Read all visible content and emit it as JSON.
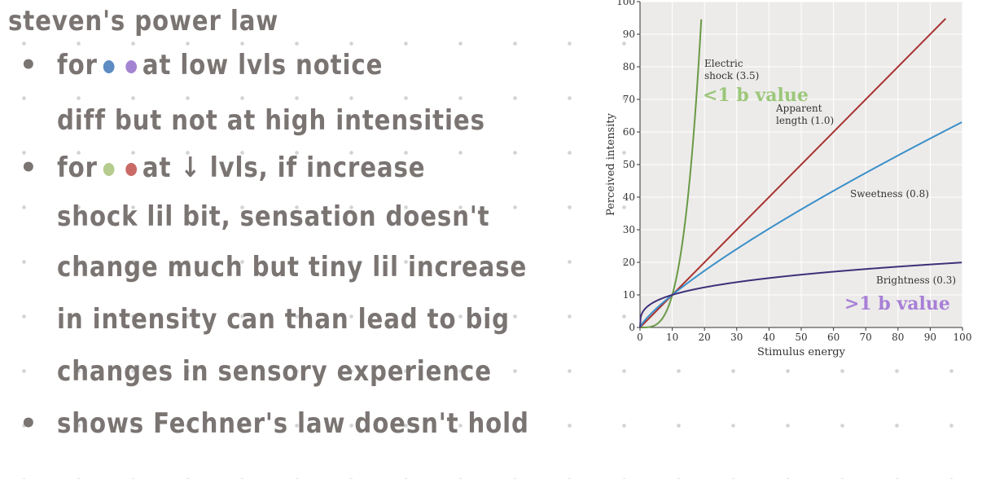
{
  "notes": {
    "title": "steven's power law",
    "bullets": [
      {
        "glyph": "•",
        "lines": [
          {
            "pre": "for",
            "dots": [
              "#5d8cc4",
              "#a384d3"
            ],
            "post": "at low lvls notice"
          },
          {
            "pre": "diff but not at high intensities",
            "dots": [],
            "post": ""
          }
        ]
      },
      {
        "glyph": "•",
        "lines": [
          {
            "pre": "for",
            "dots": [
              "#b6cc8f",
              "#c96a66"
            ],
            "post": "at ↓ lvls, if increase"
          },
          {
            "pre": "shock lil bit, sensation doesn't",
            "dots": [],
            "post": ""
          },
          {
            "pre": "change much but tiny lil increase",
            "dots": [],
            "post": ""
          },
          {
            "pre": "in intensity can than lead to big",
            "dots": [],
            "post": ""
          },
          {
            "pre": "changes in sensory experience",
            "dots": [],
            "post": ""
          }
        ]
      },
      {
        "glyph": "•",
        "lines": [
          {
            "pre": "shows Fechner's law doesn't hold",
            "dots": [],
            "post": ""
          }
        ]
      }
    ]
  },
  "chart_data": {
    "type": "line",
    "xlabel": "Stimulus energy",
    "ylabel": "Perceived intensity",
    "xlim": [
      0,
      100
    ],
    "ylim": [
      0,
      100
    ],
    "xticks": [
      0,
      10,
      20,
      30,
      40,
      50,
      60,
      70,
      80,
      90,
      100
    ],
    "yticks": [
      0,
      10,
      20,
      30,
      40,
      50,
      60,
      70,
      80,
      90,
      100
    ],
    "grid": true,
    "series": [
      {
        "name_lines": [
          "Electric",
          "shock (3.5)"
        ],
        "exponent": 3.5,
        "color": "#6a9a45"
      },
      {
        "name_lines": [
          "Apparent",
          "length (1.0)"
        ],
        "exponent": 1.0,
        "color": "#a8322f"
      },
      {
        "name_lines": [
          "Sweetness (0.8)"
        ],
        "exponent": 0.8,
        "color": "#3b8fc8"
      },
      {
        "name_lines": [
          "Brightness (0.3)"
        ],
        "exponent": 0.3,
        "color": "#3e3078"
      }
    ],
    "annotations": [
      {
        "text": "<1 b value",
        "color": "#9cc77a"
      },
      {
        "text": ">1 b value",
        "color": "#a77fd6"
      }
    ]
  }
}
